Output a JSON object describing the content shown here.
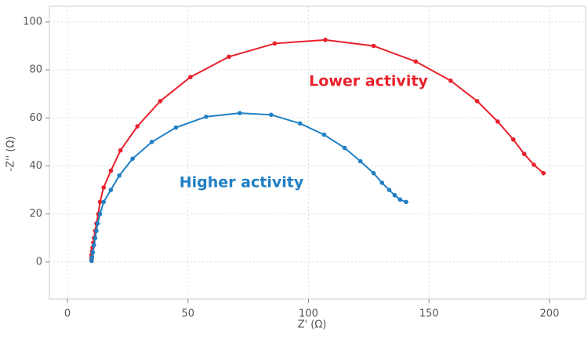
{
  "chart_data": {
    "type": "line",
    "x_label": "Z' (Ω)",
    "y_label": "-Z'' (Ω)",
    "xlim": [
      -7.5,
      215
    ],
    "ylim": [
      -15.4,
      106.5
    ],
    "xticks": [
      0,
      50,
      100,
      150,
      200
    ],
    "yticks": [
      0,
      20,
      40,
      60,
      80,
      100
    ],
    "grid": true,
    "series": [
      {
        "name": "Lower activity",
        "color": "#e8202a",
        "x": [
          10,
          10,
          10,
          10,
          10.2,
          10.4,
          10.7,
          11,
          11.5,
          12,
          12.8,
          13.5,
          15,
          18,
          22,
          29,
          38.5,
          51,
          67,
          86,
          107,
          127,
          144.5,
          159,
          170,
          178.5,
          185,
          189.5,
          193.5,
          197.5
        ],
        "values": [
          0.5,
          1,
          2,
          3,
          4.5,
          6,
          8,
          10,
          13,
          16,
          20,
          25,
          31,
          38,
          46.5,
          56.5,
          67,
          77,
          85.5,
          91,
          92.5,
          90,
          83.5,
          75.5,
          67,
          58.5,
          51,
          45,
          40.5,
          37
        ]
      },
      {
        "name": "Higher activity",
        "color": "#1f7fc4",
        "x": [
          10,
          10.2,
          10.5,
          11,
          11.5,
          12,
          12.5,
          13.5,
          15,
          18,
          21.5,
          27,
          35,
          45,
          57.5,
          71.5,
          84.5,
          96.5,
          106.5,
          115,
          121.5,
          127,
          130.5,
          133.5,
          135.8,
          138,
          140.5
        ],
        "values": [
          0.5,
          2,
          4,
          7,
          10,
          13,
          16,
          20,
          25,
          30,
          36,
          43,
          50,
          56,
          60.5,
          62,
          61.3,
          57.7,
          53,
          47.5,
          42,
          37,
          33,
          30,
          27.8,
          26,
          25
        ]
      }
    ]
  }
}
